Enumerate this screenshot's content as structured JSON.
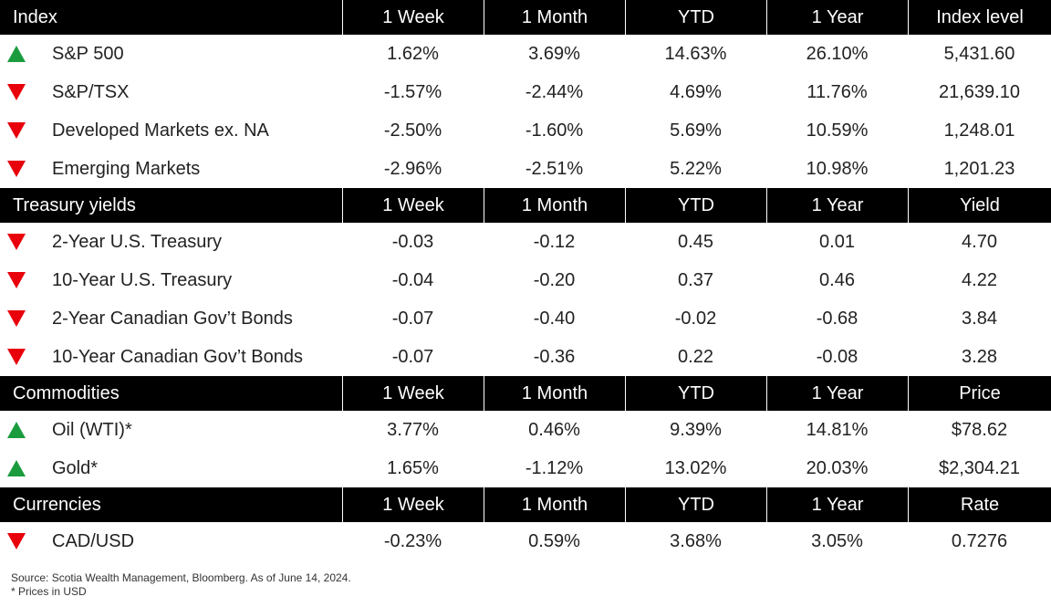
{
  "sections": [
    {
      "header": [
        "Index",
        "1 Week",
        "1 Month",
        "YTD",
        "1 Year",
        "Index level"
      ],
      "rows": [
        {
          "trend": "up",
          "cells": [
            "S&P 500",
            "1.62%",
            "3.69%",
            "14.63%",
            "26.10%",
            "5,431.60"
          ]
        },
        {
          "trend": "down",
          "cells": [
            "S&P/TSX",
            "-1.57%",
            "-2.44%",
            "4.69%",
            "11.76%",
            "21,639.10"
          ]
        },
        {
          "trend": "down",
          "cells": [
            "Developed Markets ex. NA",
            "-2.50%",
            "-1.60%",
            "5.69%",
            "10.59%",
            "1,248.01"
          ]
        },
        {
          "trend": "down",
          "cells": [
            "Emerging Markets",
            "-2.96%",
            "-2.51%",
            "5.22%",
            "10.98%",
            "1,201.23"
          ]
        }
      ]
    },
    {
      "header": [
        "Treasury yields",
        "1 Week",
        "1 Month",
        "YTD",
        "1 Year",
        "Yield"
      ],
      "rows": [
        {
          "trend": "down",
          "cells": [
            "2-Year U.S. Treasury",
            "-0.03",
            "-0.12",
            "0.45",
            "0.01",
            "4.70"
          ]
        },
        {
          "trend": "down",
          "cells": [
            "10-Year U.S. Treasury",
            "-0.04",
            "-0.20",
            "0.37",
            "0.46",
            "4.22"
          ]
        },
        {
          "trend": "down",
          "cells": [
            "2-Year Canadian Gov’t Bonds",
            "-0.07",
            "-0.40",
            "-0.02",
            "-0.68",
            "3.84"
          ]
        },
        {
          "trend": "down",
          "cells": [
            "10-Year Canadian Gov’t Bonds",
            "-0.07",
            "-0.36",
            "0.22",
            "-0.08",
            "3.28"
          ]
        }
      ]
    },
    {
      "header": [
        "Commodities",
        "1 Week",
        "1 Month",
        "YTD",
        "1 Year",
        "Price"
      ],
      "rows": [
        {
          "trend": "up",
          "cells": [
            "Oil (WTI)*",
            "3.77%",
            "0.46%",
            "9.39%",
            "14.81%",
            "$78.62"
          ]
        },
        {
          "trend": "up",
          "cells": [
            "Gold*",
            "1.65%",
            "-1.12%",
            "13.02%",
            "20.03%",
            "$2,304.21"
          ]
        }
      ]
    },
    {
      "header": [
        "Currencies",
        "1 Week",
        "1 Month",
        "YTD",
        "1 Year",
        "Rate"
      ],
      "rows": [
        {
          "trend": "down",
          "cells": [
            "CAD/USD",
            "-0.23%",
            "0.59%",
            "3.68%",
            "3.05%",
            "0.7276"
          ]
        }
      ]
    }
  ],
  "footnotes": [
    "Source: Scotia Wealth Management, Bloomberg. As of June 14, 2024.",
    "* Prices in USD"
  ]
}
